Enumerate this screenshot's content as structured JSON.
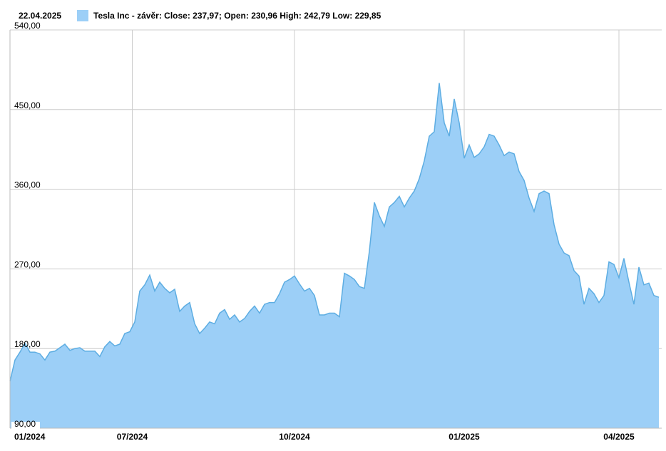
{
  "chart_data": {
    "type": "area",
    "date_label": "22.04.2025",
    "series": [
      {
        "name": "Tesla Inc - závěr: Close: 237,97; Open: 230,96 High: 242,79 Low: 229,85",
        "color": "#9ccff7",
        "line_color": "#5dade2",
        "values": [
          143,
          167,
          176,
          186,
          176,
          176,
          174,
          167,
          176,
          177,
          181,
          185,
          178,
          180,
          181,
          177,
          177,
          177,
          171,
          182,
          188,
          183,
          185,
          197,
          199,
          210,
          245,
          252,
          263,
          245,
          255,
          248,
          243,
          247,
          222,
          228,
          232,
          208,
          197,
          203,
          210,
          208,
          220,
          224,
          213,
          218,
          210,
          214,
          222,
          228,
          220,
          230,
          232,
          232,
          242,
          255,
          258,
          262,
          253,
          245,
          248,
          240,
          218,
          218,
          220,
          220,
          216,
          265,
          262,
          258,
          250,
          248,
          290,
          345,
          330,
          318,
          340,
          345,
          352,
          340,
          350,
          358,
          372,
          392,
          420,
          425,
          480,
          435,
          420,
          462,
          435,
          395,
          410,
          396,
          400,
          408,
          422,
          420,
          410,
          398,
          402,
          400,
          380,
          370,
          350,
          335,
          355,
          358,
          355,
          320,
          298,
          288,
          285,
          268,
          262,
          230,
          248,
          242,
          232,
          240,
          278,
          275,
          260,
          282,
          255,
          230,
          272,
          252,
          254,
          240,
          238
        ]
      }
    ],
    "xlim": [
      0,
      130
    ],
    "xticks": [
      {
        "value": 0,
        "label": "01/2024"
      },
      {
        "value": 24.5,
        "label": "07/2024"
      },
      {
        "value": 57,
        "label": "10/2024"
      },
      {
        "value": 91,
        "label": "01/2025"
      },
      {
        "value": 122,
        "label": "04/2025"
      }
    ],
    "ylim": [
      90,
      540
    ],
    "yticks": [
      {
        "value": 90,
        "label": "90,00"
      },
      {
        "value": 180,
        "label": "180,00"
      },
      {
        "value": 270,
        "label": "270,00"
      },
      {
        "value": 360,
        "label": "360,00"
      },
      {
        "value": 450,
        "label": "450,00"
      },
      {
        "value": 540,
        "label": "540,00"
      }
    ],
    "grid": true
  }
}
